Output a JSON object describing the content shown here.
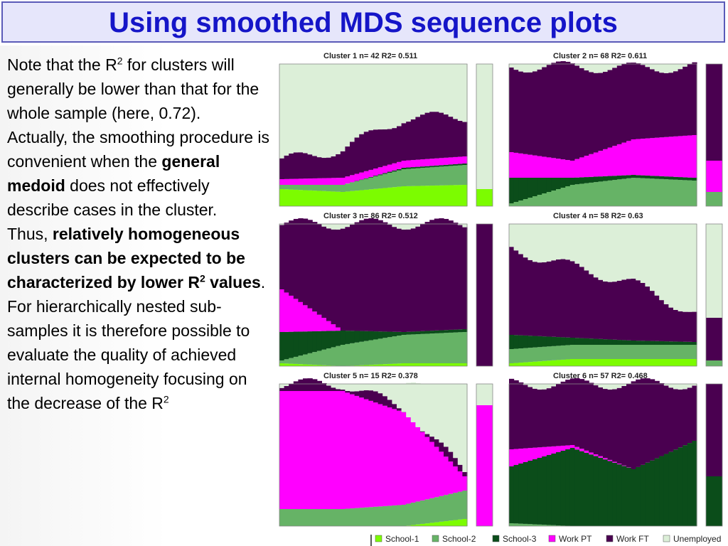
{
  "slide": {
    "title": "Using smoothed MDS sequence plots"
  },
  "text": {
    "p1_pre": "Note that the R",
    "p1_sup": "2",
    "p1_post": " for clusters will generally be lower than that for the whole sample (here, 0.72).",
    "p2_pre": "Actually, the smoothing procedure is convenient when the ",
    "p2_bold": "general medoid",
    "p2_post": " does not effectively describe cases in the cluster.",
    "p3_pre": "Thus, ",
    "p3_bold": "relatively homogeneous clusters can be expected to be characterized by lower R",
    "p3_sup": "2",
    "p3_bold2": " values",
    "p3_post": ".",
    "p4_pre": "For hierarchically nested sub-samples it is therefore possible to evaluate the quality of achieved internal homogeneity focusing on the decrease of the R",
    "p4_sup": "2"
  },
  "colors": {
    "School-1": "#7cfc00",
    "School-2": "#66b366",
    "School-3": "#0b4d1a",
    "Work PT": "#ff00ff",
    "Work FT": "#4a0050",
    "Unemployed": "#dcefd8"
  },
  "chart_data": [
    {
      "type": "area",
      "title": "Cluster 1   n= 42 R2= 0.511",
      "series_order": [
        "School-1",
        "School-2",
        "School-3",
        "Work PT",
        "Work FT",
        "Unemployed"
      ],
      "bands": [
        [
          0.12,
          0.03,
          0,
          0.04,
          0.13,
          0.68
        ],
        [
          0.1,
          0.05,
          0,
          0.05,
          0.2,
          0.6
        ],
        [
          0.14,
          0.12,
          0.01,
          0.05,
          0.3,
          0.38
        ],
        [
          0.15,
          0.14,
          0.01,
          0.05,
          0.28,
          0.37
        ]
      ],
      "side_bar": [
        0.12,
        0.0,
        0,
        0.0,
        0.0,
        0.88
      ]
    },
    {
      "type": "area",
      "title": "Cluster 2   n= 68 R2= 0.611",
      "series_order": [
        "School-1",
        "School-2",
        "School-3",
        "Work PT",
        "Work FT",
        "Unemployed"
      ],
      "bands": [
        [
          0,
          0.02,
          0.18,
          0.18,
          0.6,
          0.02
        ],
        [
          0,
          0.15,
          0.05,
          0.12,
          0.66,
          0.02
        ],
        [
          0,
          0.2,
          0.02,
          0.25,
          0.5,
          0.03
        ],
        [
          0,
          0.18,
          0.02,
          0.3,
          0.48,
          0.02
        ]
      ],
      "side_bar": [
        0,
        0.1,
        0,
        0.22,
        0.68,
        0
      ]
    },
    {
      "type": "area",
      "title": "Cluster 3   n= 86 R2= 0.512",
      "series_order": [
        "School-1",
        "School-2",
        "School-3",
        "Work PT",
        "Work FT",
        "Unemployed"
      ],
      "bands": [
        [
          0.02,
          0.02,
          0.2,
          0.3,
          0.46,
          0
        ],
        [
          0,
          0.15,
          0.1,
          0.0,
          0.75,
          0
        ],
        [
          0.02,
          0.2,
          0.02,
          0,
          0.76,
          0
        ],
        [
          0.02,
          0.22,
          0.02,
          0,
          0.74,
          0
        ]
      ],
      "side_bar": [
        0,
        0,
        0,
        0,
        1,
        0
      ]
    },
    {
      "type": "area",
      "title": "Cluster 4   n= 58 R2= 0.63",
      "series_order": [
        "School-1",
        "School-2",
        "School-3",
        "Work PT",
        "Work FT",
        "Unemployed"
      ],
      "bands": [
        [
          0.02,
          0.1,
          0.1,
          0,
          0.6,
          0.18
        ],
        [
          0.05,
          0.1,
          0.05,
          0,
          0.5,
          0.3
        ],
        [
          0.05,
          0.1,
          0.03,
          0,
          0.4,
          0.42
        ],
        [
          0.05,
          0.1,
          0.02,
          0,
          0.2,
          0.63
        ]
      ],
      "side_bar": [
        0,
        0.04,
        0,
        0,
        0.3,
        0.66
      ]
    },
    {
      "type": "area",
      "title": "Cluster 5   n= 15 R2= 0.378",
      "series_order": [
        "School-1",
        "School-2",
        "School-3",
        "Work PT",
        "Work FT",
        "Unemployed"
      ],
      "bands": [
        [
          0,
          0.12,
          0,
          0.83,
          0.05,
          0
        ],
        [
          0,
          0.12,
          0,
          0.83,
          0.05,
          0
        ],
        [
          0,
          0.15,
          0,
          0.65,
          0.03,
          0.17
        ],
        [
          0.05,
          0.2,
          0,
          0.1,
          0.03,
          0.62
        ]
      ],
      "side_bar": [
        0,
        0,
        0,
        0.85,
        0,
        0.15
      ]
    },
    {
      "type": "area",
      "title": "Cluster 6   n= 57 R2= 0.468",
      "series_order": [
        "School-1",
        "School-2",
        "School-3",
        "Work PT",
        "Work FT",
        "Unemployed"
      ],
      "bands": [
        [
          0,
          0.02,
          0.4,
          0.12,
          0.46,
          0
        ],
        [
          0,
          0.0,
          0.55,
          0.02,
          0.43,
          0
        ],
        [
          0,
          0,
          0.4,
          0,
          0.6,
          0
        ],
        [
          0,
          0,
          0.6,
          0,
          0.4,
          0
        ]
      ],
      "side_bar": [
        0,
        0,
        0.35,
        0,
        0.65,
        0
      ]
    }
  ],
  "legend": [
    "School-1",
    "School-2",
    "School-3",
    "Work PT",
    "Work FT",
    "Unemployed"
  ]
}
